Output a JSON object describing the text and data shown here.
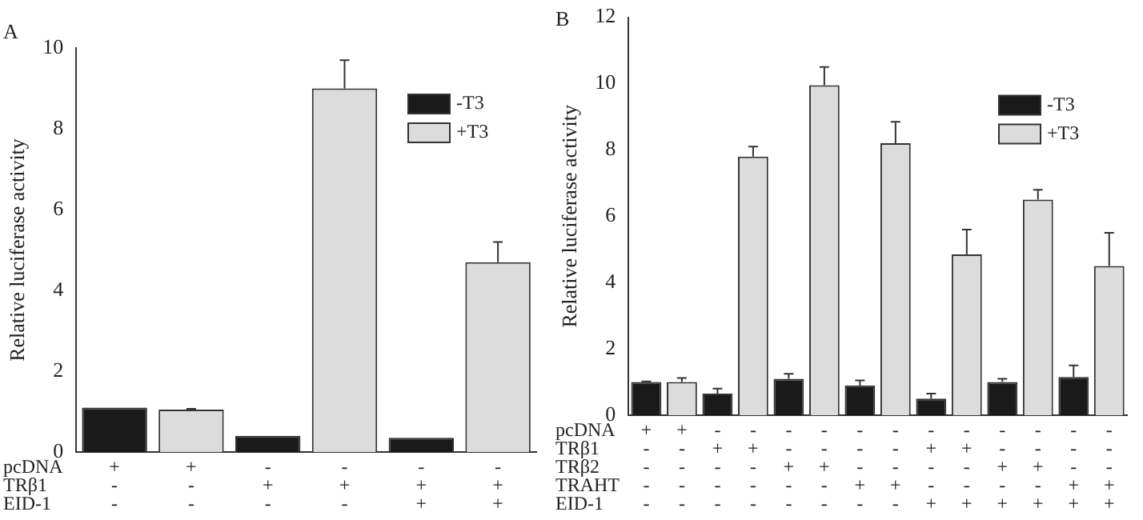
{
  "chart_data": [
    {
      "type": "bar",
      "title": "A",
      "ylabel": "Relative luciferase activity",
      "categories": [
        "+\n-\n-",
        "+\n-\n-",
        "-\n+\n-",
        "-\n+\n-",
        "-\n+\n+",
        "-\n+\n+"
      ],
      "annotations": [
        "pcDNA",
        "TRβ1",
        "EID-1"
      ],
      "series": [
        {
          "name": "-T3",
          "color": "#1a1a1a",
          "values": [
            1.1,
            null,
            0.4,
            null,
            0.35,
            null
          ],
          "errors": [
            null,
            null,
            null,
            null,
            null,
            null
          ]
        },
        {
          "name": "+T3",
          "color": "#dcdcdc",
          "values": [
            null,
            1.05,
            null,
            9.0,
            null,
            4.7
          ],
          "errors": [
            null,
            [
              1.05,
              1.07
            ],
            null,
            [
              9.0,
              9.7
            ],
            null,
            [
              4.7,
              5.2
            ]
          ]
        }
      ],
      "ylim": [
        0,
        10
      ],
      "yticks": [
        0,
        2,
        4,
        6,
        8,
        10
      ],
      "grid": false,
      "legend": "top right"
    },
    {
      "type": "bar",
      "title": "B",
      "ylabel": "Relative luciferase activity",
      "categories": [
        "+\n-\n-\n-\n-",
        "+\n-\n-\n-\n-",
        "-\n+\n-\n-\n-",
        "-\n+\n-\n-\n-",
        "-\n-\n+\n-\n-",
        "-\n-\n+\n-\n-",
        "-\n-\n-\n+\n-",
        "-\n-\n-\n+\n-",
        "-\n+\n-\n-\n+",
        "-\n+\n-\n-\n+",
        "-\n-\n+\n-\n+",
        "-\n-\n+\n-\n+",
        "-\n-\n-\n+\n+",
        "-\n-\n-\n+\n+"
      ],
      "annotations": [
        "pcDNA",
        "TRβ1",
        "TRβ2",
        "TRAHT",
        "EID-1"
      ],
      "series": [
        {
          "name": "-T3",
          "color": "#1a1a1a",
          "values": [
            1.0,
            null,
            0.65,
            null,
            1.1,
            null,
            0.9,
            null,
            0.5,
            null,
            1.0,
            null,
            1.15,
            null
          ],
          "errors": [
            [
              1.0,
              1.02
            ],
            null,
            [
              0.65,
              0.8
            ],
            null,
            [
              1.1,
              1.25
            ],
            null,
            [
              0.9,
              1.05
            ],
            null,
            [
              0.5,
              0.65
            ],
            null,
            [
              1.0,
              1.1
            ],
            null,
            [
              1.15,
              1.5
            ],
            null
          ]
        },
        {
          "name": "+T3",
          "color": "#dcdcdc",
          "values": [
            null,
            1.0,
            null,
            7.8,
            null,
            9.95,
            null,
            8.2,
            null,
            4.85,
            null,
            6.5,
            null,
            4.5
          ],
          "errors": [
            null,
            [
              1.0,
              1.12
            ],
            null,
            [
              7.8,
              8.1
            ],
            null,
            [
              9.95,
              10.5
            ],
            null,
            [
              8.2,
              8.85
            ],
            null,
            [
              4.85,
              5.6
            ],
            null,
            [
              6.5,
              6.8
            ],
            null,
            [
              4.5,
              5.5
            ]
          ]
        }
      ],
      "ylim": [
        0,
        12
      ],
      "yticks": [
        0,
        2,
        4,
        6,
        8,
        10,
        12
      ],
      "grid": false,
      "legend": "top right"
    }
  ]
}
